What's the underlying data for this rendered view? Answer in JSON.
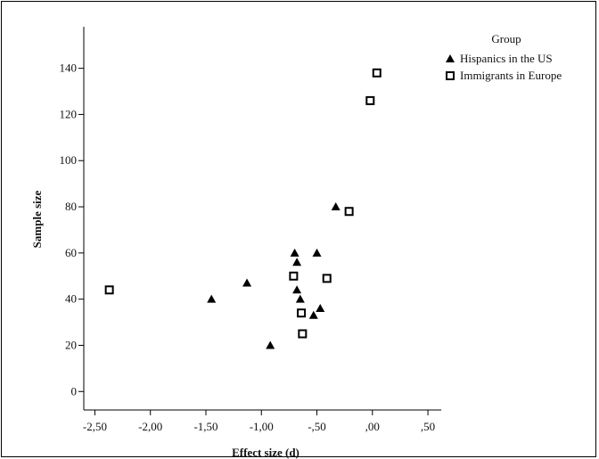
{
  "chart_data": {
    "type": "scatter",
    "xlabel": "Effect size (d)",
    "ylabel": "Sample size",
    "xlim": [
      -2.6,
      0.62
    ],
    "ylim": [
      -8,
      158
    ],
    "x_ticks": [
      {
        "value": -2.5,
        "label": "-2,50"
      },
      {
        "value": -2.0,
        "label": "-2,00"
      },
      {
        "value": -1.5,
        "label": "-1,50"
      },
      {
        "value": -1.0,
        "label": "-1,00"
      },
      {
        "value": -0.5,
        "label": "-,50"
      },
      {
        "value": 0.0,
        "label": ",00"
      },
      {
        "value": 0.5,
        "label": ",50"
      }
    ],
    "y_ticks": [
      {
        "value": 0,
        "label": "0"
      },
      {
        "value": 20,
        "label": "20"
      },
      {
        "value": 40,
        "label": "40"
      },
      {
        "value": 60,
        "label": "60"
      },
      {
        "value": 80,
        "label": "80"
      },
      {
        "value": 100,
        "label": "100"
      },
      {
        "value": 120,
        "label": "120"
      },
      {
        "value": 140,
        "label": "140"
      }
    ],
    "grid": false,
    "legend": {
      "title": "Group",
      "placement": "top-right"
    },
    "series": [
      {
        "name": "Hispanics in the US",
        "marker": "triangle",
        "color": "#000000",
        "points": [
          {
            "x": -1.45,
            "y": 40
          },
          {
            "x": -1.13,
            "y": 47
          },
          {
            "x": -0.92,
            "y": 20
          },
          {
            "x": -0.7,
            "y": 60
          },
          {
            "x": -0.68,
            "y": 56
          },
          {
            "x": -0.68,
            "y": 44
          },
          {
            "x": -0.65,
            "y": 40
          },
          {
            "x": -0.53,
            "y": 33
          },
          {
            "x": -0.5,
            "y": 60
          },
          {
            "x": -0.47,
            "y": 36
          },
          {
            "x": -0.33,
            "y": 80
          }
        ]
      },
      {
        "name": "Immigrants in Europe",
        "marker": "square",
        "color": "#000000",
        "points": [
          {
            "x": -2.37,
            "y": 44
          },
          {
            "x": -0.71,
            "y": 50
          },
          {
            "x": -0.64,
            "y": 34
          },
          {
            "x": -0.63,
            "y": 25
          },
          {
            "x": -0.41,
            "y": 49
          },
          {
            "x": -0.21,
            "y": 78
          },
          {
            "x": -0.02,
            "y": 126
          },
          {
            "x": 0.04,
            "y": 138
          }
        ]
      }
    ]
  }
}
